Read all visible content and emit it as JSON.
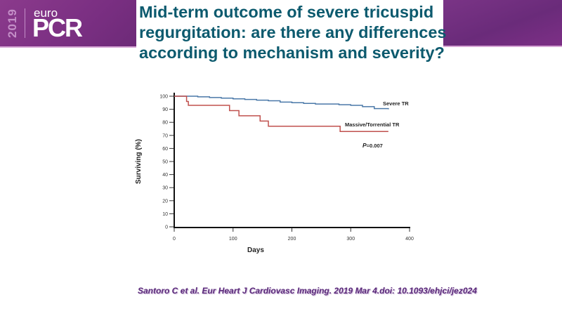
{
  "header": {
    "logo_year": "2019",
    "logo_prefix": "euro",
    "logo_name": "PCR",
    "title": "Mid-term outcome of severe tricuspid regurgitation: are there any differences according to mechanism and severity?"
  },
  "colors": {
    "banner_purple": "#7a2f82",
    "title_teal": "#0c5a6e",
    "citation_purple": "#5a2a7a",
    "severe_series": "#4a78a8",
    "massive_series": "#c0504d"
  },
  "citation": "Santoro C et al. Eur Heart J Cardiovasc  Imaging. 2019 Mar 4.doi: 10.1093/ehjci/jez024",
  "chart_data": {
    "type": "line",
    "subtype": "kaplan-meier step",
    "title": "",
    "xlabel": "Days",
    "ylabel": "Surviving (%)",
    "xlim": [
      0,
      400
    ],
    "ylim": [
      0,
      100
    ],
    "x_ticks": [
      0,
      100,
      200,
      300,
      400
    ],
    "y_ticks": [
      0,
      10,
      20,
      30,
      40,
      50,
      60,
      70,
      80,
      90,
      100
    ],
    "grid": false,
    "annotation": {
      "prefix": "P",
      "text": "=0.007"
    },
    "series": [
      {
        "name": "Severe TR",
        "color": "#4a78a8",
        "x": [
          0,
          20,
          40,
          60,
          80,
          100,
          120,
          140,
          160,
          180,
          200,
          220,
          240,
          260,
          280,
          300,
          320,
          340,
          364
        ],
        "y": [
          100,
          100,
          99.5,
          99,
          98.5,
          98,
          97.5,
          97,
          96.5,
          95.5,
          95,
          94.5,
          94,
          94,
          93.5,
          93,
          92,
          90.5,
          90
        ]
      },
      {
        "name": "Massive/Torrential TR",
        "color": "#c0504d",
        "x": [
          0,
          21,
          24,
          94,
          110,
          146,
          160,
          282,
          364
        ],
        "y": [
          100,
          96,
          93,
          89,
          85,
          81,
          77,
          73,
          73
        ]
      }
    ]
  }
}
